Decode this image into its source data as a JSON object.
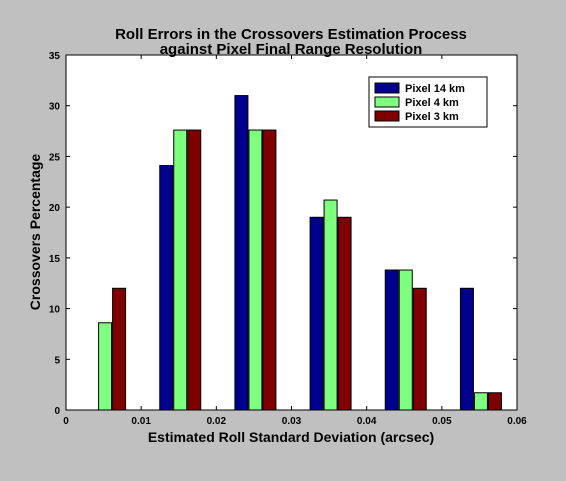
{
  "chart_data": {
    "type": "bar",
    "title": [
      "Roll Errors in the Crossovers Estimation Process",
      "against Pixel Final Range Resolution"
    ],
    "xlabel": "Estimated Roll Standard Deviation (arcsec)",
    "ylabel": "Crossovers Percentage",
    "xlim": [
      0,
      0.06
    ],
    "ylim": [
      0,
      35
    ],
    "xticks": [
      "0",
      "0.01",
      "0.02",
      "0.03",
      "0.04",
      "0.05",
      "0.06"
    ],
    "yticks": [
      "0",
      "5",
      "10",
      "15",
      "20",
      "25",
      "30",
      "35"
    ],
    "x": [
      0.005,
      0.015,
      0.025,
      0.035,
      0.045,
      0.055
    ],
    "series": [
      {
        "name": "Pixel 14 km",
        "color": "#00008f",
        "values": [
          0,
          24.1,
          31.0,
          19.0,
          13.8,
          12.0
        ]
      },
      {
        "name": "Pixel 4 km",
        "color": "#7fff7f",
        "values": [
          8.6,
          27.6,
          27.6,
          20.7,
          13.8,
          1.7
        ]
      },
      {
        "name": "Pixel 3 km",
        "color": "#7f0000",
        "values": [
          12.0,
          27.6,
          27.6,
          19.0,
          12.0,
          1.7
        ]
      }
    ],
    "legend_position": "top-right",
    "grid": false,
    "figure_background": "#c0c0c0",
    "axes_background": "#ffffff"
  }
}
